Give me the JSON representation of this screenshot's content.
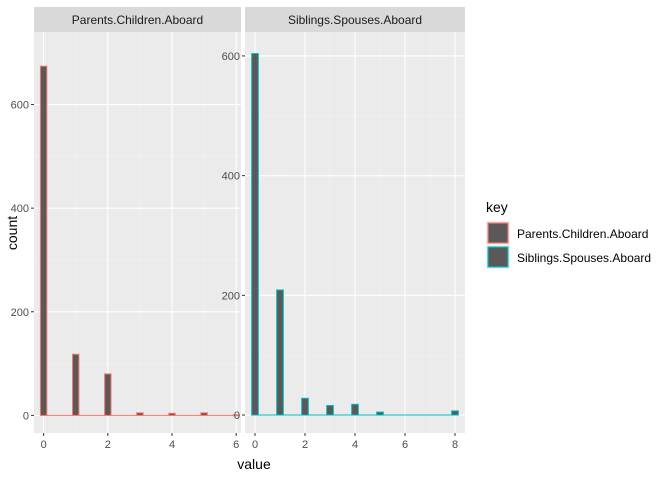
{
  "chart_data": {
    "type": "bar",
    "chart_kind": "faceted histogram",
    "xlabel": "value",
    "ylabel": "count",
    "grid": true,
    "legend": {
      "title": "key",
      "placement": "right",
      "entries": [
        {
          "label": "Parents.Children.Aboard",
          "color": "#F8766D"
        },
        {
          "label": "Siblings.Spouses.Aboard",
          "color": "#00BFC4"
        }
      ]
    },
    "fill_color": "#595959",
    "panels": [
      {
        "strip": "Parents.Children.Aboard",
        "series": "Parents.Children.Aboard",
        "xlim": [
          -0.3,
          6.15
        ],
        "ylim": [
          -34,
          740
        ],
        "x_ticks": [
          "0",
          "2",
          "4",
          "6"
        ],
        "y_ticks": [
          "0",
          "200",
          "400",
          "600"
        ],
        "x_tick_values": [
          0,
          2,
          4,
          6
        ],
        "y_tick_values": [
          0,
          200,
          400,
          600
        ],
        "bins": [
          {
            "x": 0,
            "count": 674
          },
          {
            "x": 1,
            "count": 118
          },
          {
            "x": 2,
            "count": 80
          },
          {
            "x": 3,
            "count": 5
          },
          {
            "x": 4,
            "count": 4
          },
          {
            "x": 5,
            "count": 5
          },
          {
            "x": 6,
            "count": 1
          }
        ],
        "bin_width": 0.2
      },
      {
        "strip": "Siblings.Spouses.Aboard",
        "series": "Siblings.Spouses.Aboard",
        "xlim": [
          -0.4,
          8.4
        ],
        "ylim": [
          -30,
          640
        ],
        "x_ticks": [
          "0",
          "2",
          "4",
          "6",
          "8"
        ],
        "y_ticks": [
          "0",
          "200",
          "400",
          "600"
        ],
        "x_tick_values": [
          0,
          2,
          4,
          6,
          8
        ],
        "y_tick_values": [
          0,
          200,
          400,
          600
        ],
        "bins": [
          {
            "x": 0,
            "count": 604
          },
          {
            "x": 1,
            "count": 209
          },
          {
            "x": 2,
            "count": 28
          },
          {
            "x": 3,
            "count": 16
          },
          {
            "x": 4,
            "count": 18
          },
          {
            "x": 5,
            "count": 5
          },
          {
            "x": 8,
            "count": 7
          }
        ],
        "bin_width": 0.27
      }
    ]
  }
}
